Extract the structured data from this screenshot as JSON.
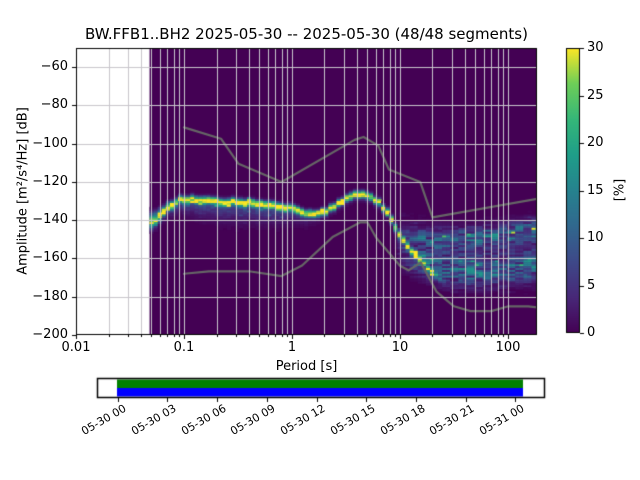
{
  "chart_data": {
    "type": "heatmap",
    "title": "BW.FFB1..BH2   2025-05-30 -- 2025-05-30  (48/48 segments)",
    "station": "BW.FFB1..BH2",
    "date_range": "2025-05-30 -- 2025-05-30",
    "segments": "48/48",
    "xlabel": "Period [s]",
    "ylabel": "Amplitude [m²/s⁴/Hz] [dB]",
    "colorbar_label": "[%]",
    "xscale": "log",
    "xlim": [
      0.01,
      185.7
    ],
    "ylim": [
      -200,
      -50
    ],
    "clim": [
      0,
      30
    ],
    "x_tick_values": [
      0.01,
      0.1,
      1,
      10,
      100
    ],
    "x_tick_labels": [
      "0.01",
      "0.1",
      "1",
      "10",
      "100"
    ],
    "y_tick_values": [
      -60,
      -80,
      -100,
      -120,
      -140,
      -160,
      -180,
      -200
    ],
    "y_tick_labels": [
      "−60",
      "−80",
      "−100",
      "−120",
      "−140",
      "−160",
      "−180",
      "−200"
    ],
    "colorbar_tick_values": [
      0,
      5,
      10,
      15,
      20,
      25,
      30
    ],
    "colorbar_tick_labels": [
      "0",
      "5",
      "10",
      "15",
      "20",
      "25",
      "30"
    ],
    "grid": true,
    "grid_color": "#c9c6cc",
    "background_value_color": "#440154",
    "no_data_color": "#ffffff",
    "data_period_range_s": [
      0.048,
      185.7
    ],
    "period_step_decades": 0.037628,
    "db_bin_width": 1,
    "colormap_stops": [
      [
        0,
        "#440154"
      ],
      [
        0.125,
        "#482878"
      ],
      [
        0.25,
        "#3e4989"
      ],
      [
        0.375,
        "#31688e"
      ],
      [
        0.5,
        "#26828e"
      ],
      [
        0.625,
        "#1f9e89"
      ],
      [
        0.75,
        "#35b779"
      ],
      [
        0.875,
        "#6ece58"
      ],
      [
        1,
        "#fde725"
      ]
    ],
    "mode_curve_period_db": [
      [
        0.048,
        -141.5
      ],
      [
        0.056,
        -139.5
      ],
      [
        0.071,
        -133.5
      ],
      [
        0.089,
        -129.5
      ],
      [
        0.112,
        -129.0
      ],
      [
        0.2,
        -130.0
      ],
      [
        0.4,
        -131.0
      ],
      [
        0.71,
        -132.5
      ],
      [
        1.0,
        -134.0
      ],
      [
        1.32,
        -136.0
      ],
      [
        1.58,
        -136.8
      ],
      [
        2.0,
        -136.0
      ],
      [
        2.63,
        -131.5
      ],
      [
        3.55,
        -127.5
      ],
      [
        4.27,
        -126.5
      ],
      [
        5.0,
        -127.0
      ],
      [
        6.3,
        -130.5
      ],
      [
        7.6,
        -136.0
      ],
      [
        8.9,
        -143.0
      ],
      [
        10.0,
        -148.0
      ],
      [
        12.0,
        -154.0
      ],
      [
        14.1,
        -158.5
      ],
      [
        16.6,
        -162.5
      ],
      [
        20.0,
        -167.0
      ],
      [
        25.0,
        -172.0
      ]
    ],
    "distribution": {
      "mode_amp_pct": [
        [
          0.048,
          22
        ],
        [
          0.056,
          30
        ],
        [
          8.9,
          30
        ],
        [
          14,
          27
        ],
        [
          16,
          20
        ],
        [
          20,
          12
        ],
        [
          25,
          5
        ],
        [
          28,
          0
        ]
      ],
      "core_sigma_above_db": [
        [
          0.048,
          3.0
        ],
        [
          0.063,
          1.8
        ],
        [
          0.089,
          1.2
        ],
        [
          185,
          1.2
        ]
      ],
      "core_sigma_below_db": 1.3,
      "tail_sigma_db": [
        [
          0.048,
          2.5
        ],
        [
          0.079,
          3.5
        ],
        [
          0.126,
          5.0
        ],
        [
          0.316,
          6.0
        ],
        [
          0.63,
          5.5
        ],
        [
          1.0,
          4.5
        ],
        [
          1.41,
          3.5
        ],
        [
          2.0,
          2.5
        ],
        [
          5.0,
          2.5
        ],
        [
          10.0,
          3.0
        ]
      ],
      "tail_amp_pct": [
        [
          0.048,
          5
        ],
        [
          0.071,
          6
        ],
        [
          0.1,
          8
        ],
        [
          0.71,
          8
        ],
        [
          1.3,
          4.5
        ],
        [
          2.0,
          2.5
        ],
        [
          5.0,
          2.5
        ],
        [
          7.9,
          3
        ],
        [
          12,
          0
        ]
      ],
      "mode_wobble_db": 0.6
    },
    "fan": {
      "upper_center_db": [
        [
          8.9,
          -147
        ],
        [
          12.6,
          -149
        ],
        [
          20,
          -150
        ],
        [
          50,
          -149
        ],
        [
          100,
          -147
        ],
        [
          185,
          -145
        ]
      ],
      "upper_amp_pct": [
        [
          8.9,
          0
        ],
        [
          15.8,
          7
        ],
        [
          40,
          9
        ],
        [
          185,
          10
        ]
      ],
      "upper_sigma_db": 3.5,
      "lower_center_db": [
        [
          8.9,
          -155
        ],
        [
          12.6,
          -159
        ],
        [
          20,
          -164
        ],
        [
          31.6,
          -167
        ],
        [
          63,
          -167
        ],
        [
          100,
          -166
        ],
        [
          185,
          -164
        ]
      ],
      "lower_amp_pct": [
        [
          8.9,
          0
        ],
        [
          12.6,
          5
        ],
        [
          20,
          8
        ],
        [
          40,
          9
        ],
        [
          185,
          10
        ]
      ],
      "lower_sigma_db": 5,
      "haze_amp_pct": [
        [
          8.9,
          0
        ],
        [
          11,
          2
        ],
        [
          20,
          2.5
        ],
        [
          185,
          2.5
        ]
      ],
      "haze_sigma_db": 9
    },
    "noise_models": {
      "color": "#666666",
      "nhnm": [
        [
          0.1,
          -91.5
        ],
        [
          0.22,
          -97.4
        ],
        [
          0.32,
          -110.5
        ],
        [
          0.8,
          -120.0
        ],
        [
          3.8,
          -98.0
        ],
        [
          4.6,
          -96.5
        ],
        [
          6.3,
          -101.0
        ],
        [
          7.9,
          -113.5
        ],
        [
          15.4,
          -120.0
        ],
        [
          20.0,
          -138.5
        ],
        [
          354.8,
          -126.0
        ]
      ],
      "nlnm": [
        [
          0.1,
          -168.0
        ],
        [
          0.17,
          -166.7
        ],
        [
          0.4,
          -166.7
        ],
        [
          0.8,
          -169.2
        ],
        [
          1.24,
          -163.7
        ],
        [
          2.4,
          -148.6
        ],
        [
          4.3,
          -141.1
        ],
        [
          5.0,
          -141.1
        ],
        [
          6.0,
          -149.0
        ],
        [
          10.0,
          -163.8
        ],
        [
          12.0,
          -166.2
        ],
        [
          15.6,
          -162.1
        ],
        [
          21.9,
          -177.5
        ],
        [
          31.6,
          -185.0
        ],
        [
          45.0,
          -187.5
        ],
        [
          70.0,
          -187.5
        ],
        [
          101.0,
          -185.0
        ],
        [
          154.0,
          -185.0
        ],
        [
          328.0,
          -187.5
        ]
      ]
    },
    "timeline": {
      "tick_labels": [
        "05-30 00",
        "05-30 03",
        "05-30 06",
        "05-30 09",
        "05-30 12",
        "05-30 15",
        "05-30 18",
        "05-30 21",
        "05-31 00"
      ],
      "data_color": "#008000",
      "used_color": "#0000ff",
      "frame_color": "#000000"
    }
  }
}
